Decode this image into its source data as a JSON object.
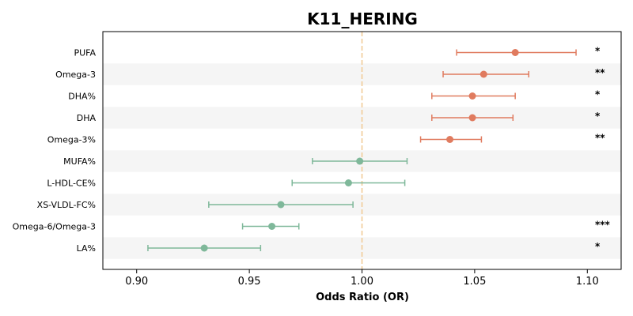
{
  "chart_data": {
    "type": "forest",
    "title": "K11_HERING",
    "xlabel": "Odds Ratio (OR)",
    "ylabel": "",
    "xlim": [
      0.885,
      1.115
    ],
    "xticks": [
      "0.90",
      "0.95",
      "1.00",
      "1.05",
      "1.10"
    ],
    "reference_line": 1.0,
    "grid": false,
    "colors": {
      "positive": "#e07b5f",
      "negative": "#7fb89a",
      "reference": "#f0c890",
      "band": "#f5f5f5"
    },
    "rows": [
      {
        "label": "PUFA",
        "or": 1.068,
        "lo": 1.042,
        "hi": 1.095,
        "sig": "*"
      },
      {
        "label": "Omega-3",
        "or": 1.054,
        "lo": 1.036,
        "hi": 1.074,
        "sig": "**"
      },
      {
        "label": "DHA%",
        "or": 1.049,
        "lo": 1.031,
        "hi": 1.068,
        "sig": "*"
      },
      {
        "label": "DHA",
        "or": 1.049,
        "lo": 1.031,
        "hi": 1.067,
        "sig": "*"
      },
      {
        "label": "Omega-3%",
        "or": 1.039,
        "lo": 1.026,
        "hi": 1.053,
        "sig": "**"
      },
      {
        "label": "MUFA%",
        "or": 0.999,
        "lo": 0.978,
        "hi": 1.02,
        "sig": ""
      },
      {
        "label": "L-HDL-CE%",
        "or": 0.994,
        "lo": 0.969,
        "hi": 1.019,
        "sig": ""
      },
      {
        "label": "XS-VLDL-FC%",
        "or": 0.964,
        "lo": 0.932,
        "hi": 0.996,
        "sig": ""
      },
      {
        "label": "Omega-6/Omega-3",
        "or": 0.96,
        "lo": 0.947,
        "hi": 0.972,
        "sig": "***"
      },
      {
        "label": "LA%",
        "or": 0.93,
        "lo": 0.905,
        "hi": 0.955,
        "sig": "*"
      }
    ]
  }
}
